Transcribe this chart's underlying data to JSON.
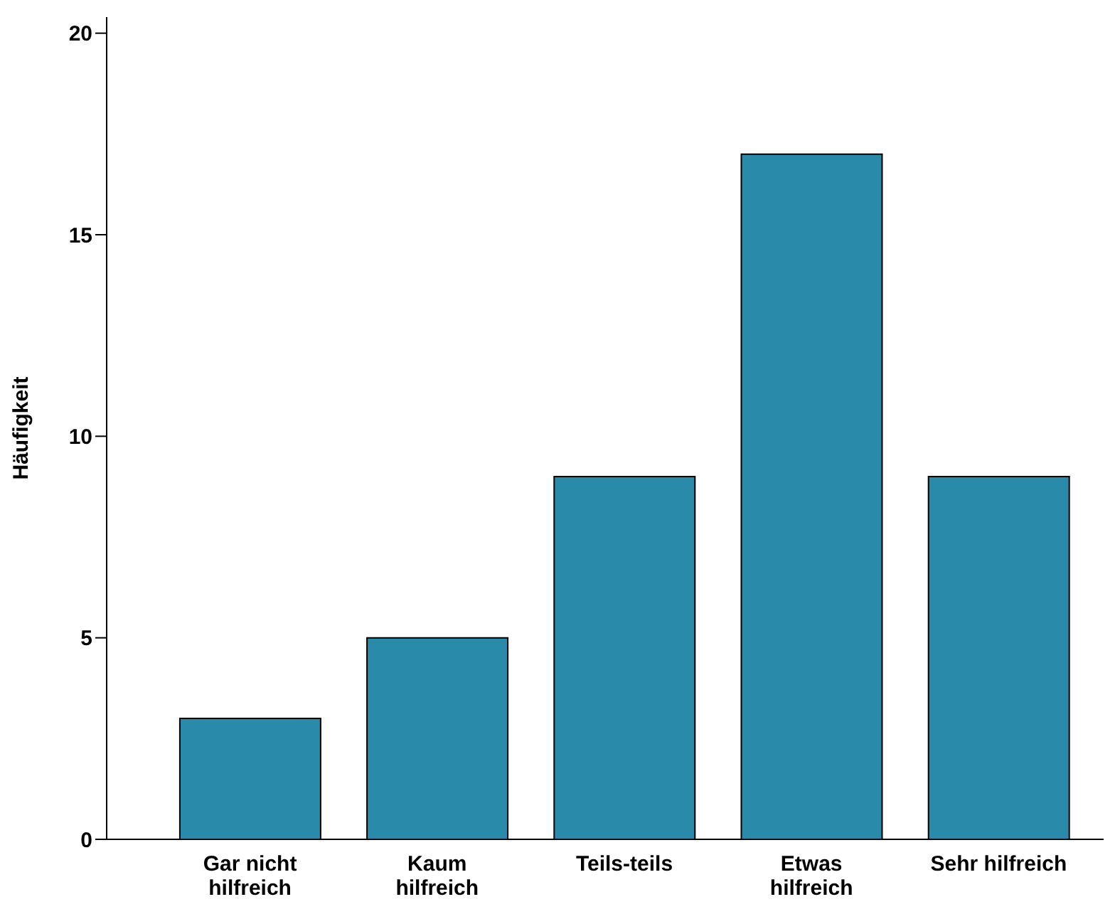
{
  "chart_data": {
    "type": "bar",
    "ylabel": "Häufigkeit",
    "categories": [
      "Gar nicht\nhilfreich",
      "Kaum\nhilfreich",
      "Teils-teils",
      "Etwas\nhilfreich",
      "Sehr hilfreich"
    ],
    "values": [
      3,
      5,
      9,
      17,
      9
    ],
    "color": "#2a8aaa",
    "ylim": [
      0,
      20.4
    ],
    "yticks": [
      0,
      5,
      10,
      15,
      20
    ],
    "grid": false,
    "legend": false
  }
}
